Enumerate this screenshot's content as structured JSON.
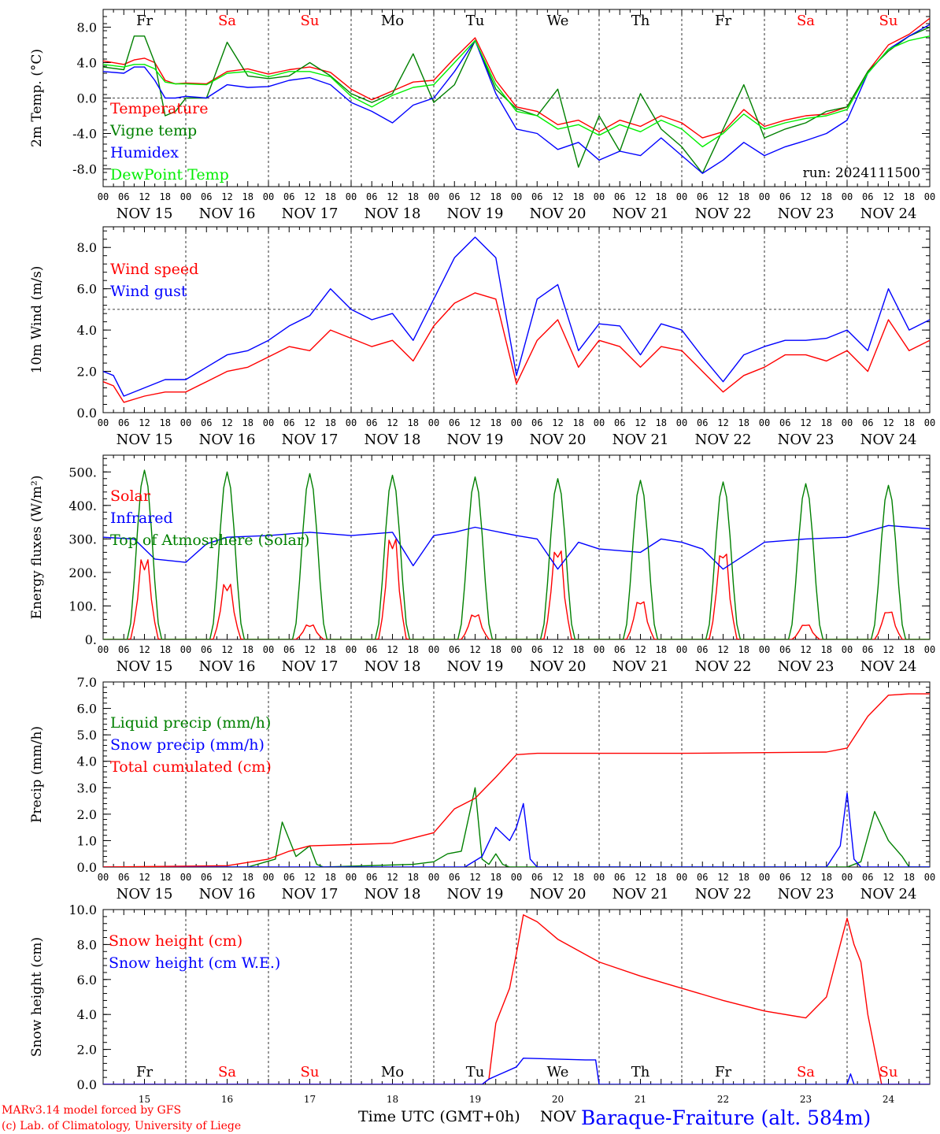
{
  "footer": {
    "credit_line1": "MARv3.14 model forced by GFS",
    "credit_line2": "(c) Lab. of Climatology, University of Liege",
    "time_label": "Time UTC (GMT+0h)",
    "month_label": "NOV",
    "station": "Baraque-Fraiture (alt. 584m)"
  },
  "days": {
    "weekday_labels": [
      "Fr",
      "Sa",
      "Su",
      "Mo",
      "Tu",
      "We",
      "Th",
      "Fr",
      "Sa",
      "Su"
    ],
    "weekend_flags": [
      false,
      true,
      true,
      false,
      false,
      false,
      false,
      false,
      true,
      true
    ],
    "date_labels": [
      "NOV 15",
      "NOV 16",
      "NOV 17",
      "NOV 18",
      "NOV 19",
      "NOV 20",
      "NOV 21",
      "NOV 22",
      "NOV 23",
      "NOV 24"
    ],
    "day_numbers": [
      "15",
      "16",
      "17",
      "18",
      "19",
      "20",
      "21",
      "22",
      "23",
      "24"
    ],
    "hour_ticks": [
      "00",
      "06",
      "12",
      "18"
    ],
    "final_hour_tick": "00"
  },
  "colors": {
    "red": "#ff0000",
    "green": "#008000",
    "blue": "#0000ff",
    "lime": "#00ee00",
    "weekend": "#ff0000",
    "weekday": "#000000"
  },
  "chart_data": [
    {
      "type": "line",
      "ylabel": "2m Temp. (°C)",
      "ylim": [
        -10,
        10
      ],
      "yticks": [
        -8,
        -4,
        0,
        4,
        8
      ],
      "ytick_labels": [
        "-8.0",
        "-4.0",
        "0.0",
        "4.0",
        "8.0"
      ],
      "ref_line": 0,
      "run_label": "run: 2024111500",
      "x_hours": [
        0,
        6,
        9,
        12,
        15,
        18,
        21,
        24,
        30,
        36,
        42,
        48,
        54,
        60,
        66,
        72,
        78,
        84,
        90,
        96,
        102,
        108,
        114,
        120,
        126,
        132,
        138,
        144,
        150,
        156,
        162,
        168,
        174,
        180,
        186,
        192,
        198,
        204,
        210,
        216,
        222,
        228,
        234,
        240
      ],
      "series": [
        {
          "name": "Temperature",
          "color": "#ff0000",
          "values": [
            4.2,
            3.8,
            4.3,
            4.5,
            4.0,
            2.0,
            1.6,
            1.7,
            1.6,
            3.0,
            3.3,
            2.7,
            3.2,
            3.5,
            2.9,
            1.0,
            -0.2,
            0.8,
            1.8,
            2.0,
            4.5,
            6.8,
            2.0,
            -1.0,
            -1.5,
            -3.0,
            -2.5,
            -3.8,
            -2.5,
            -3.2,
            -2.0,
            -2.8,
            -4.5,
            -3.8,
            -1.3,
            -3.2,
            -2.5,
            -2.0,
            -1.8,
            -1.0,
            3.0,
            6.0,
            7.2,
            9.0
          ]
        },
        {
          "name": "Vigne temp",
          "color": "#008000",
          "values": [
            3.5,
            3.2,
            7.0,
            7.0,
            4.0,
            -2.0,
            -1.5,
            0.0,
            0.0,
            6.3,
            2.5,
            2.2,
            2.5,
            4.0,
            2.5,
            0.5,
            -0.5,
            0.5,
            5.0,
            -0.5,
            1.5,
            6.5,
            1.0,
            -1.2,
            -2.0,
            1.0,
            -7.8,
            -2.0,
            -6.0,
            0.5,
            -3.5,
            -5.5,
            -8.5,
            -3.5,
            1.5,
            -4.5,
            -3.5,
            -2.8,
            -1.5,
            -1.0,
            3.0,
            5.3,
            7.0,
            8.0
          ]
        },
        {
          "name": "Humidex",
          "color": "#0000ff",
          "values": [
            3.0,
            2.8,
            3.5,
            3.5,
            2.0,
            0.0,
            0.0,
            0.2,
            0.0,
            1.5,
            1.2,
            1.3,
            2.0,
            2.3,
            1.5,
            -0.5,
            -1.5,
            -2.8,
            -0.8,
            0.0,
            3.0,
            6.5,
            0.5,
            -3.5,
            -4.0,
            -5.8,
            -5.0,
            -7.0,
            -6.0,
            -6.5,
            -4.5,
            -6.5,
            -8.5,
            -7.0,
            -5.0,
            -6.5,
            -5.5,
            -4.8,
            -4.0,
            -2.5,
            2.8,
            5.5,
            7.0,
            8.3
          ]
        },
        {
          "name": "DewPoint Temp",
          "color": "#00ee00",
          "values": [
            3.8,
            3.5,
            3.8,
            3.8,
            3.3,
            1.8,
            1.6,
            1.6,
            1.5,
            2.8,
            3.0,
            2.4,
            3.0,
            3.0,
            2.4,
            0.2,
            -1.0,
            0.3,
            1.2,
            1.5,
            4.0,
            6.5,
            1.5,
            -1.5,
            -2.0,
            -3.5,
            -3.0,
            -4.2,
            -3.0,
            -3.8,
            -2.5,
            -3.5,
            -5.5,
            -4.0,
            -1.8,
            -3.5,
            -2.8,
            -2.3,
            -2.0,
            -1.3,
            2.8,
            5.5,
            6.5,
            7.0
          ]
        }
      ]
    },
    {
      "type": "line",
      "ylabel": "10m Wind (m/s)",
      "ylim": [
        0,
        9
      ],
      "yticks": [
        0,
        2,
        4,
        6,
        8
      ],
      "ytick_labels": [
        "0.0",
        "2.0",
        "4.0",
        "6.0",
        "8.0"
      ],
      "ref_line": 5,
      "x_hours": [
        0,
        3,
        6,
        12,
        18,
        24,
        30,
        36,
        42,
        48,
        54,
        60,
        66,
        72,
        78,
        84,
        90,
        96,
        102,
        108,
        114,
        120,
        126,
        132,
        138,
        144,
        150,
        156,
        162,
        168,
        174,
        180,
        186,
        192,
        198,
        204,
        210,
        216,
        222,
        228,
        234,
        240
      ],
      "series": [
        {
          "name": "Wind speed",
          "color": "#ff0000",
          "values": [
            1.5,
            1.3,
            0.5,
            0.8,
            1.0,
            1.0,
            1.5,
            2.0,
            2.2,
            2.7,
            3.2,
            3.0,
            4.0,
            3.6,
            3.2,
            3.5,
            2.5,
            4.2,
            5.3,
            5.8,
            5.5,
            1.4,
            3.5,
            4.5,
            2.2,
            3.5,
            3.2,
            2.2,
            3.2,
            3.0,
            2.0,
            1.0,
            1.8,
            2.2,
            2.8,
            2.8,
            2.5,
            3.0,
            2.0,
            4.5,
            3.0,
            3.5
          ]
        },
        {
          "name": "Wind gust",
          "color": "#0000ff",
          "values": [
            2.0,
            1.8,
            0.8,
            1.2,
            1.6,
            1.6,
            2.2,
            2.8,
            3.0,
            3.5,
            4.2,
            4.7,
            6.0,
            5.0,
            4.5,
            4.8,
            3.5,
            5.5,
            7.5,
            8.5,
            7.5,
            1.8,
            5.5,
            6.2,
            3.0,
            4.3,
            4.2,
            2.8,
            4.3,
            4.0,
            2.7,
            1.5,
            2.8,
            3.2,
            3.5,
            3.5,
            3.6,
            4.0,
            3.0,
            6.0,
            4.0,
            4.5
          ]
        }
      ]
    },
    {
      "type": "line",
      "ylabel": "Energy fluxes (W/m²)",
      "ylim": [
        0,
        550
      ],
      "yticks": [
        0,
        100,
        200,
        300,
        400,
        500
      ],
      "ytick_labels": [
        "0.",
        "100.",
        "200.",
        "300.",
        "400.",
        "500."
      ],
      "series": [
        {
          "name": "Solar",
          "color": "#ff0000",
          "peaks": [
            275,
            190,
            50,
            345,
            85,
            305,
            130,
            295,
            50,
            95
          ]
        },
        {
          "name": "Infrared",
          "color": "#0000ff",
          "x_hours": [
            0,
            9,
            15,
            24,
            30,
            36,
            48,
            60,
            72,
            84,
            90,
            96,
            102,
            108,
            120,
            126,
            132,
            138,
            144,
            156,
            162,
            168,
            174,
            180,
            192,
            204,
            216,
            228,
            240
          ],
          "values": [
            305,
            300,
            240,
            230,
            285,
            305,
            310,
            320,
            310,
            320,
            220,
            310,
            320,
            335,
            310,
            300,
            210,
            290,
            270,
            260,
            300,
            290,
            270,
            210,
            290,
            300,
            305,
            340,
            330
          ]
        },
        {
          "name": "Top of Atmosphere (Solar)",
          "color": "#008000",
          "peaks": [
            505,
            500,
            495,
            490,
            485,
            480,
            475,
            470,
            465,
            460
          ]
        }
      ]
    },
    {
      "type": "line",
      "ylabel": "Precip (mm/h)",
      "ylim": [
        0,
        7
      ],
      "yticks": [
        0,
        1,
        2,
        3,
        4,
        5,
        6,
        7
      ],
      "ytick_labels": [
        "0.0",
        "1.0",
        "2.0",
        "3.0",
        "4.0",
        "5.0",
        "6.0",
        "7.0"
      ],
      "series": [
        {
          "name": "Liquid precip (mm/h)",
          "color": "#008000",
          "x_hours": [
            0,
            42,
            50,
            52,
            56,
            60,
            62,
            64,
            90,
            96,
            100,
            104,
            108,
            110,
            112,
            114,
            116,
            118,
            120,
            216,
            220,
            224,
            228,
            232,
            234,
            240
          ],
          "values": [
            0,
            0,
            0.3,
            1.7,
            0.4,
            0.8,
            0.1,
            0,
            0.1,
            0.2,
            0.5,
            0.6,
            3.0,
            0.3,
            0.1,
            0.5,
            0.1,
            0,
            0,
            0,
            0.2,
            2.1,
            1.0,
            0.4,
            0,
            0
          ]
        },
        {
          "name": "Snow precip (mm/h)",
          "color": "#0000ff",
          "x_hours": [
            0,
            105,
            110,
            114,
            118,
            120,
            122,
            124,
            126,
            128,
            130,
            210,
            214,
            216,
            218,
            220,
            222,
            240
          ],
          "values": [
            0,
            0,
            0.4,
            1.5,
            1.0,
            1.5,
            2.4,
            0.3,
            0,
            0,
            0,
            0,
            0.8,
            2.8,
            0.3,
            0,
            0,
            0
          ]
        },
        {
          "name": "Total cumulated (cm)",
          "color": "#ff0000",
          "x_hours": [
            0,
            36,
            48,
            54,
            60,
            72,
            84,
            96,
            102,
            108,
            114,
            120,
            126,
            168,
            210,
            216,
            222,
            228,
            234,
            240
          ],
          "values": [
            0,
            0.05,
            0.3,
            0.6,
            0.8,
            0.85,
            0.9,
            1.3,
            2.2,
            2.6,
            3.4,
            4.25,
            4.3,
            4.3,
            4.35,
            4.5,
            5.7,
            6.5,
            6.55,
            6.55
          ]
        }
      ]
    },
    {
      "type": "line",
      "ylabel": "Snow height (cm)",
      "ylim": [
        0,
        10
      ],
      "yticks": [
        0,
        2,
        4,
        6,
        8,
        10
      ],
      "ytick_labels": [
        "0.0",
        "2.0",
        "4.0",
        "6.0",
        "8.0",
        "10.0"
      ],
      "series": [
        {
          "name": "Snow height (cm)",
          "color": "#ff0000",
          "x_hours": [
            0,
            110,
            112,
            114,
            118,
            120,
            122,
            126,
            132,
            144,
            156,
            168,
            180,
            192,
            204,
            210,
            216,
            218,
            220,
            222,
            226,
            228,
            240
          ],
          "values": [
            0,
            0,
            0.3,
            3.5,
            5.5,
            7.5,
            9.7,
            9.3,
            8.3,
            7.0,
            6.2,
            5.5,
            4.8,
            4.2,
            3.8,
            5.0,
            9.5,
            8.0,
            7.0,
            4.0,
            0,
            0,
            0
          ]
        },
        {
          "name": "Snow height (cm W.E.)",
          "color": "#0000ff",
          "x_hours": [
            0,
            110,
            112,
            120,
            122,
            140,
            143,
            144,
            216,
            217,
            218,
            240
          ],
          "values": [
            0,
            0,
            0.3,
            1.0,
            1.5,
            1.4,
            1.4,
            0,
            0,
            0.6,
            0,
            0
          ]
        }
      ]
    }
  ]
}
